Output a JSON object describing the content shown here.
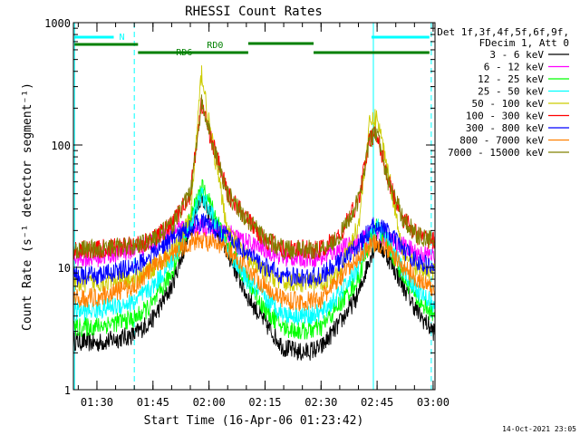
{
  "chart_data": {
    "type": "line",
    "title": "RHESSI Count Rates",
    "xlabel": "Start Time (16-Apr-06 01:23:42)",
    "ylabel": "Count Rate (s⁻¹ detector segment⁻¹)",
    "footer": "14-Oct-2021 23:05",
    "y_scale": "log",
    "ylim": [
      1,
      1000
    ],
    "xlim": [
      "01:23:42",
      "03:00:30"
    ],
    "grid": false,
    "legend_position": "top-right",
    "legend_header": [
      "Det 1f,3f,4f,5f,6f,9f,",
      "FDecim 1, Att 0"
    ],
    "y_ticks": [
      1,
      10,
      100,
      1000
    ],
    "y_tick_labels": [
      "1",
      "10",
      "100",
      "1000"
    ],
    "x_ticks": [
      "01:30",
      "01:45",
      "02:00",
      "02:15",
      "02:30",
      "02:45",
      "03:00"
    ],
    "x_tick_minutes": [
      90,
      105,
      120,
      135,
      150,
      165,
      180
    ],
    "x_tick_labels": [
      "01:30",
      "01:45",
      "02:00",
      "02:15",
      "02:30",
      "02:45",
      "03:00"
    ],
    "time_minutes": [
      84,
      90,
      100,
      105,
      110,
      115,
      118,
      120,
      125,
      130,
      135,
      140,
      145,
      150,
      155,
      160,
      163,
      165,
      168,
      172,
      176,
      180
    ],
    "series": [
      {
        "name": "3 - 6 keV",
        "color": "#000000",
        "values": [
          2.5,
          2.4,
          2.8,
          3.8,
          7,
          20,
          40,
          28,
          13,
          6,
          3.5,
          2.2,
          2,
          2.2,
          3.5,
          6,
          12,
          16,
          12,
          7,
          4.2,
          3.0
        ]
      },
      {
        "name": "6 - 12 keV",
        "color": "#ff00ff",
        "values": [
          12,
          12,
          14,
          16,
          19,
          21,
          22,
          21,
          19,
          16,
          14,
          12,
          12,
          12,
          14,
          16,
          18,
          19,
          17,
          15,
          13,
          12.5
        ]
      },
      {
        "name": "12 - 25 keV",
        "color": "#00ff00",
        "values": [
          3.2,
          3.3,
          3.8,
          5,
          9,
          25,
          45,
          35,
          15,
          8,
          4.5,
          3.2,
          3,
          3.2,
          5,
          8,
          16,
          22,
          15,
          8.5,
          5.3,
          4.2
        ]
      },
      {
        "name": "25 - 50 keV",
        "color": "#00ffff",
        "values": [
          4.3,
          4.5,
          5.2,
          7,
          11,
          22,
          40,
          30,
          14,
          8,
          5.5,
          4.2,
          4,
          4.2,
          6,
          10,
          18,
          22,
          16,
          9.5,
          6.3,
          5.1
        ]
      },
      {
        "name": "50 - 100 keV",
        "color": "#cccc00",
        "values": [
          7.5,
          7.5,
          8,
          10,
          13,
          25,
          400,
          150,
          20,
          12,
          9,
          7.5,
          7.5,
          7.5,
          9.5,
          22,
          150,
          170,
          60,
          13,
          9.5,
          9.0
        ]
      },
      {
        "name": "100 - 300 keV",
        "color": "#ff0000",
        "values": [
          14,
          14,
          15,
          17,
          22,
          40,
          220,
          130,
          40,
          25,
          17,
          14,
          14,
          14,
          18,
          35,
          110,
          125,
          50,
          25,
          18,
          16.5
        ]
      },
      {
        "name": "300 - 800 keV",
        "color": "#0000ff",
        "values": [
          8.5,
          8.5,
          10,
          13,
          17,
          21,
          24,
          22,
          18,
          13,
          10,
          8.5,
          8.2,
          8.5,
          11,
          15,
          20,
          23,
          19,
          14,
          11,
          10.0
        ]
      },
      {
        "name": "800 - 7000 keV",
        "color": "#ff8000",
        "values": [
          5.5,
          5.7,
          7,
          10,
          13,
          16,
          17,
          16,
          14,
          10,
          7,
          5.5,
          5.2,
          5.5,
          8,
          12,
          15,
          16,
          14,
          10,
          8,
          6.5
        ]
      },
      {
        "name": "7000 - 15000 keV",
        "color": "#808000",
        "values": [
          14,
          14,
          15,
          17,
          22,
          40,
          220,
          130,
          40,
          25,
          17,
          14,
          14,
          14,
          18,
          35,
          110,
          125,
          50,
          25,
          18,
          16.5
        ]
      }
    ],
    "annotations": [
      {
        "label": "N",
        "color": "#00ffff",
        "minutes": [
          84,
          94.5
        ]
      },
      {
        "label": "",
        "color": "#00ffff",
        "minutes": [
          163.5,
          179
        ]
      },
      {
        "label": "RD0",
        "color": "#008000",
        "minutes": [
          84,
          101
        ]
      },
      {
        "label": "RD6",
        "color": "#008000",
        "minutes": [
          101,
          130.5
        ]
      },
      {
        "label": "",
        "color": "#008000",
        "minutes": [
          130.5,
          148
        ]
      },
      {
        "label": "",
        "color": "#008000",
        "minutes": [
          148,
          179
        ]
      }
    ],
    "vertical_lines": [
      {
        "minutes": 84,
        "style": "solid",
        "color": "#00ffff"
      },
      {
        "minutes": 100,
        "style": "dashed",
        "color": "#00ffff"
      },
      {
        "minutes": 164,
        "style": "solid",
        "color": "#00ffff"
      },
      {
        "minutes": 179.5,
        "style": "dashed",
        "color": "#00ffff"
      }
    ]
  }
}
